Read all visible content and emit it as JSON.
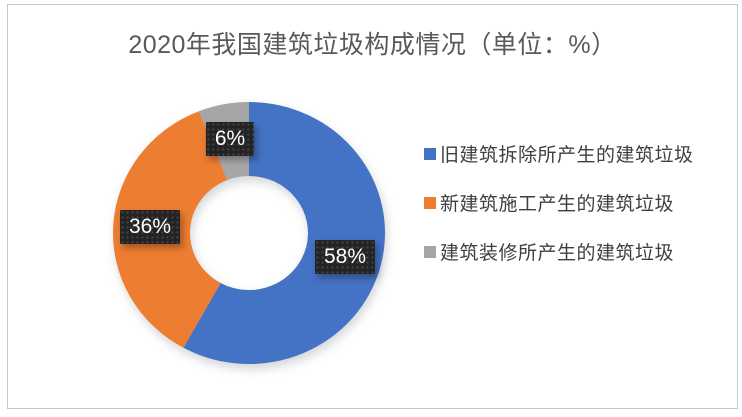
{
  "window": {
    "background": "#ffffff",
    "panel_border_color": "#c6c6c6"
  },
  "chart_data": {
    "type": "pie",
    "subtype": "donut",
    "title": "2020年我国建筑垃圾构成情况（单位：%）",
    "unit": "%",
    "categories": [
      "旧建筑拆除所产生的建筑垃圾",
      "新建筑施工产生的建筑垃圾",
      "建筑装修所产生的建筑垃圾"
    ],
    "values": [
      58,
      36,
      6
    ],
    "data_labels": [
      "58%",
      "36%",
      "6%"
    ],
    "colors": [
      "#4472c4",
      "#ed7d31",
      "#a6a6a6"
    ],
    "start_angle_deg": 0,
    "direction": "clockwise",
    "hole_ratio": 0.43,
    "legend_position": "right",
    "data_label_style": {
      "background": "#232323",
      "text_color": "#ffffff"
    }
  },
  "legend": {
    "items": [
      {
        "label": "旧建筑拆除所产生的建筑垃圾",
        "color": "#4472c4"
      },
      {
        "label": "新建筑施工产生的建筑垃圾",
        "color": "#ed7d31"
      },
      {
        "label": "建筑装修所产生的建筑垃圾",
        "color": "#a6a6a6"
      }
    ]
  }
}
